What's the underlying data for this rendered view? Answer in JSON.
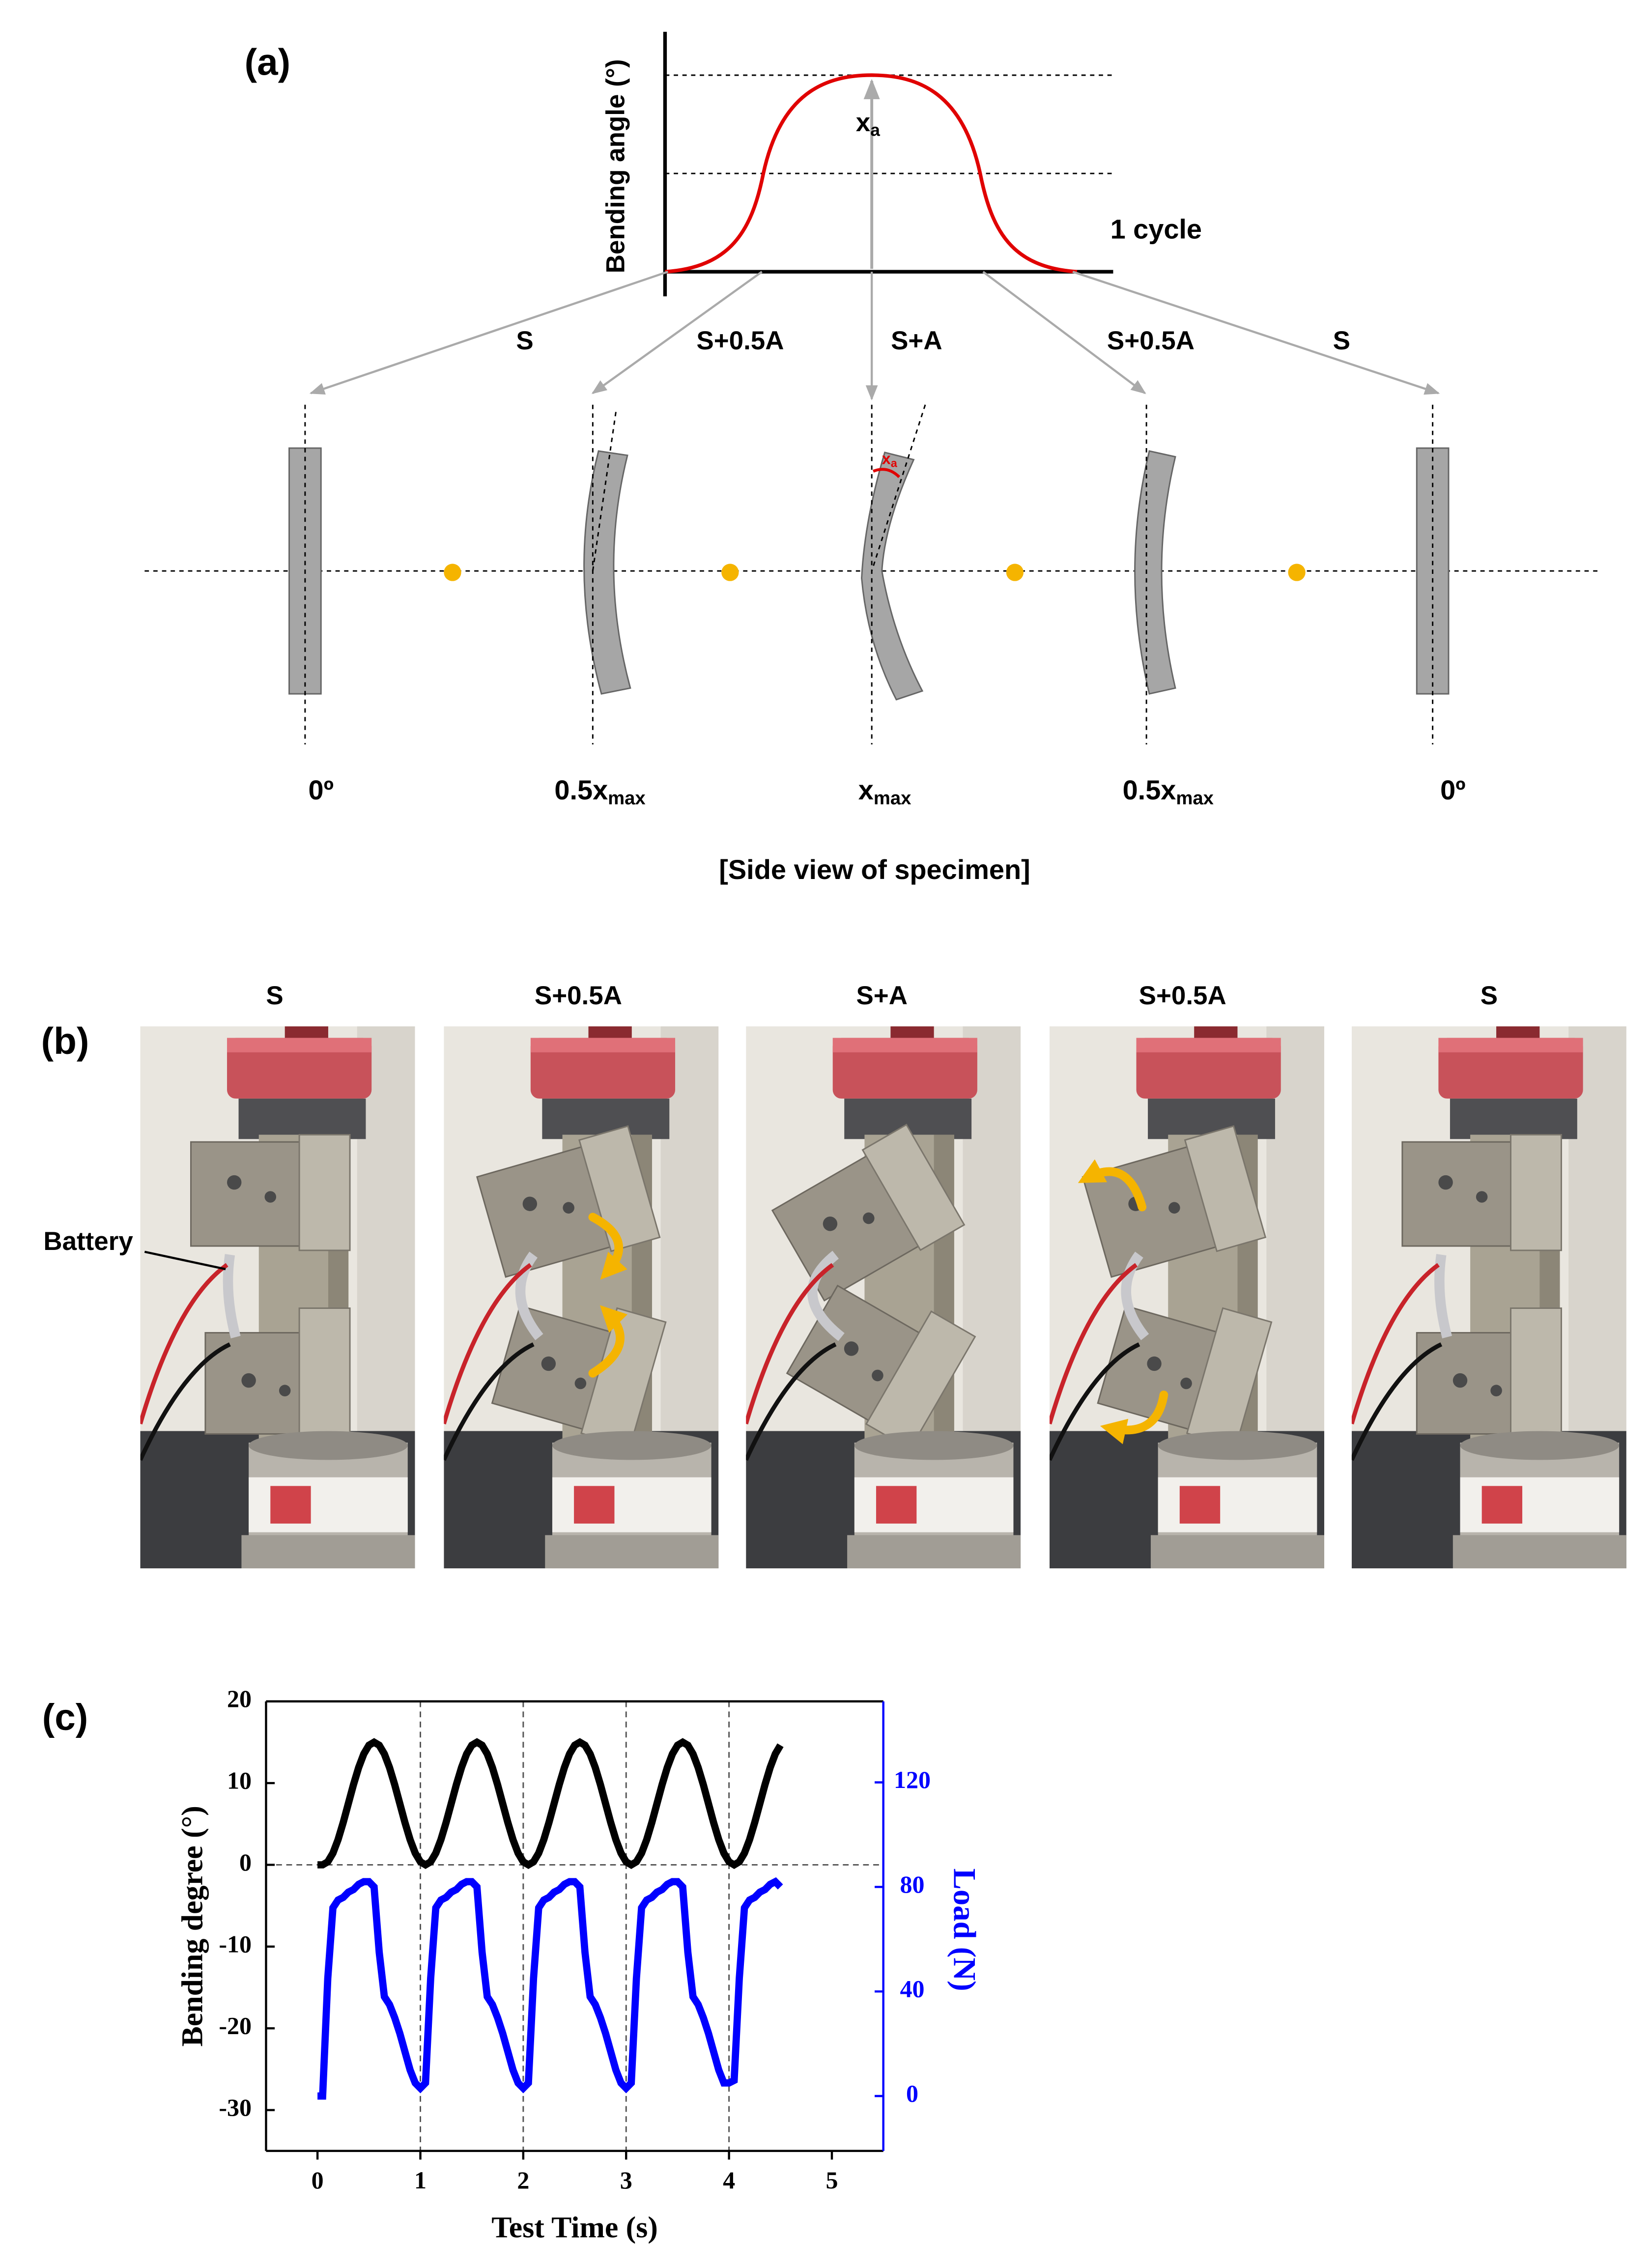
{
  "panel_a": {
    "label": "(a)",
    "ylabel": "Bending angle (°)",
    "peak_label": {
      "text": "x",
      "sub": "a"
    },
    "cycle_label": "1 cycle",
    "phases": [
      "S",
      "S+0.5A",
      "S+A",
      "S+0.5A",
      "S"
    ],
    "angle_labels": [
      "0º",
      {
        "text": "0.5x",
        "sub": "max"
      },
      {
        "text": "x",
        "sub": "max"
      },
      {
        "text": "0.5x",
        "sub": "max"
      },
      "0º"
    ],
    "bend_label": {
      "text": "x",
      "sub": "a"
    },
    "caption": "[Side view of specimen]"
  },
  "panel_b": {
    "label": "(b)",
    "phases": [
      "S",
      "S+0.5A",
      "S+A",
      "S+0.5A",
      "S"
    ],
    "battery_label": "Battery"
  },
  "chart_data": {
    "type": "line",
    "label": "(c)",
    "xlabel": "Test Time (s)",
    "ylabel": "Bending degree (°)",
    "y2label": "Load (N)",
    "xlim": [
      -0.5,
      5.5
    ],
    "xticks": [
      0,
      1,
      2,
      3,
      4,
      5
    ],
    "ylim": [
      -35,
      20
    ],
    "yticks": [
      -30,
      -20,
      -10,
      0,
      10,
      20
    ],
    "y2lim": [
      -21,
      151
    ],
    "y2ticks": [
      0,
      40,
      80,
      120
    ],
    "ref_x": [
      1,
      2,
      3,
      4
    ],
    "ref_y": [
      0
    ],
    "x": [
      0,
      0.05,
      0.1,
      0.15,
      0.2,
      0.25,
      0.3,
      0.35,
      0.4,
      0.45,
      0.5,
      0.55,
      0.6,
      0.65,
      0.7,
      0.75,
      0.8,
      0.85,
      0.9,
      0.95,
      1,
      1.05,
      1.1,
      1.15,
      1.2,
      1.25,
      1.3,
      1.35,
      1.4,
      1.45,
      1.5,
      1.55,
      1.6,
      1.65,
      1.7,
      1.75,
      1.8,
      1.85,
      1.9,
      1.95,
      2,
      2.05,
      2.1,
      2.15,
      2.2,
      2.25,
      2.3,
      2.35,
      2.4,
      2.45,
      2.5,
      2.55,
      2.6,
      2.65,
      2.7,
      2.75,
      2.8,
      2.85,
      2.9,
      2.95,
      3,
      3.05,
      3.1,
      3.15,
      3.2,
      3.25,
      3.3,
      3.35,
      3.4,
      3.45,
      3.5,
      3.55,
      3.6,
      3.65,
      3.7,
      3.75,
      3.8,
      3.85,
      3.9,
      3.95,
      4,
      4.05,
      4.1,
      4.15,
      4.2,
      4.25,
      4.3,
      4.35,
      4.4,
      4.45,
      4.5
    ],
    "series": [
      {
        "color": "#000000",
        "axis": "y",
        "values": [
          0,
          0,
          0.37,
          1.43,
          3.09,
          5.18,
          7.5,
          9.82,
          11.91,
          13.57,
          14.63,
          15,
          14.63,
          13.57,
          11.91,
          9.82,
          7.5,
          5.18,
          3.09,
          1.43,
          0.37,
          0,
          0.37,
          1.43,
          3.09,
          5.18,
          7.5,
          9.82,
          11.91,
          13.57,
          14.63,
          15,
          14.63,
          13.57,
          11.91,
          9.82,
          7.5,
          5.18,
          3.09,
          1.43,
          0.37,
          0,
          0.37,
          1.43,
          3.09,
          5.18,
          7.5,
          9.82,
          11.91,
          13.57,
          14.63,
          15,
          14.63,
          13.57,
          11.91,
          9.82,
          7.5,
          5.18,
          3.09,
          1.43,
          0.37,
          0,
          0.37,
          1.43,
          3.09,
          5.18,
          7.5,
          9.82,
          11.91,
          13.57,
          14.63,
          15,
          14.63,
          13.57,
          11.91,
          9.82,
          7.5,
          5.18,
          3.09,
          1.43,
          0.37,
          0,
          0.37,
          1.43,
          3.09,
          5.18,
          7.5,
          9.82,
          11.91,
          13.57,
          14.63
        ]
      },
      {
        "color": "#0000ff",
        "axis": "y2",
        "values": [
          0,
          0,
          45,
          72,
          75,
          76,
          78,
          79,
          81,
          82,
          82,
          80,
          55,
          38,
          35,
          30,
          24,
          17,
          10,
          5,
          3,
          5,
          45,
          72,
          75,
          76,
          78,
          79,
          81,
          82,
          82,
          80,
          55,
          38,
          35,
          30,
          24,
          17,
          10,
          5,
          3,
          5,
          45,
          72,
          75,
          76,
          78,
          79,
          81,
          82,
          82,
          80,
          55,
          38,
          35,
          30,
          24,
          17,
          10,
          5,
          3,
          5,
          45,
          72,
          75,
          76,
          78,
          79,
          81,
          82,
          82,
          80,
          55,
          38,
          35,
          30,
          24,
          17,
          10,
          5,
          5,
          6,
          45,
          72,
          75,
          76,
          78,
          79,
          81,
          82,
          80
        ]
      }
    ]
  }
}
